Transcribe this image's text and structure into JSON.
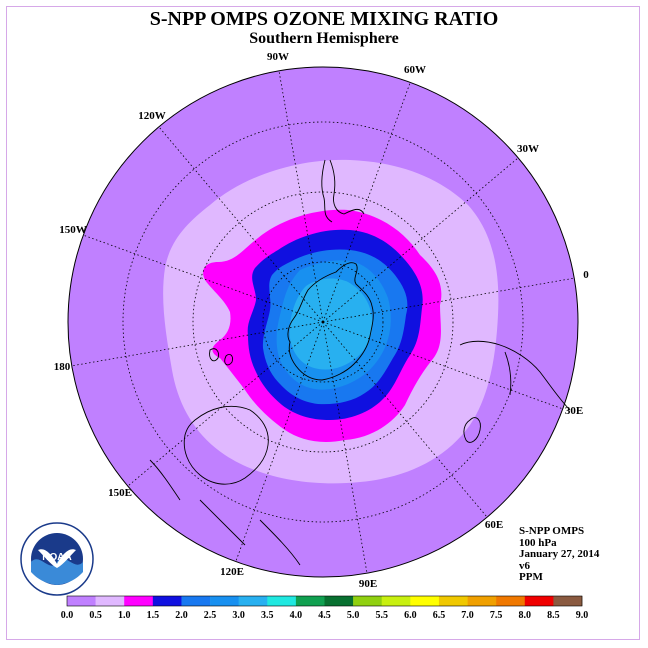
{
  "title": "S-NPP OMPS OZONE MIXING RATIO",
  "subtitle": "Southern Hemisphere",
  "lon_labels": {
    "90w": "90W",
    "60w": "60W",
    "30w": "30W",
    "0": "0",
    "30e": "30E",
    "60e": "60E",
    "90e": "90E",
    "120e": "120E",
    "150e": "150E",
    "180": "180",
    "150w": "150W",
    "120w": "120W"
  },
  "logo_text": "NOAA",
  "info": {
    "instrument": "S-NPP OMPS",
    "level": "100 hPa",
    "date": "January 27, 2014",
    "version": "v6",
    "units": "PPM"
  },
  "legend": {
    "ticks": [
      "0.0",
      "0.5",
      "1.0",
      "1.5",
      "2.0",
      "2.5",
      "3.0",
      "3.5",
      "4.0",
      "4.5",
      "5.0",
      "5.5",
      "6.0",
      "6.5",
      "7.0",
      "7.5",
      "8.0",
      "8.5",
      "9.0"
    ],
    "colors": [
      "#c080ff",
      "#e0b8ff",
      "#ff00ff",
      "#1010e0",
      "#1878f0",
      "#1890f0",
      "#28b0f0",
      "#20e8e0",
      "#10a050",
      "#087030",
      "#90d010",
      "#c8f010",
      "#ffff00",
      "#f0c800",
      "#f0a000",
      "#f07800",
      "#f00000",
      "#8a5a40"
    ]
  },
  "map_data": {
    "projection": "south polar stereographic",
    "field": "ozone mixing ratio",
    "regions": [
      {
        "range": [
          0.0,
          0.5
        ],
        "color": "#c080ff"
      },
      {
        "range": [
          0.5,
          1.0
        ],
        "color": "#e0b8ff"
      },
      {
        "range": [
          1.0,
          1.5
        ],
        "color": "#ff00ff"
      },
      {
        "range": [
          1.5,
          2.0
        ],
        "color": "#1010e0"
      },
      {
        "range": [
          2.0,
          2.5
        ],
        "color": "#1878f0"
      },
      {
        "range": [
          2.5,
          3.0
        ],
        "color": "#1890f0"
      },
      {
        "range": [
          3.0,
          3.5
        ],
        "color": "#28b0f0"
      }
    ]
  }
}
